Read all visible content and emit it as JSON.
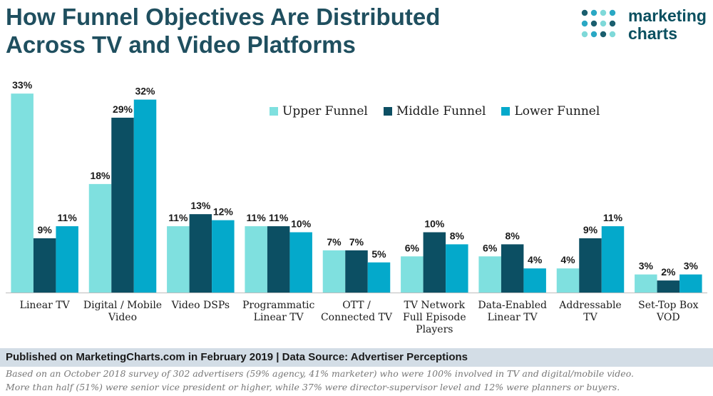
{
  "header": {
    "title_line1": "How Funnel Objectives Are Distributed",
    "title_line2": "Across TV and Video Platforms"
  },
  "logo": {
    "line1": "marketing",
    "line2": "charts",
    "dot_colors": [
      "#1a5e6e",
      "#2aa8c4",
      "#7fd9d9"
    ]
  },
  "chart_data": {
    "type": "bar",
    "categories": [
      [
        "Linear TV"
      ],
      [
        "Digital / Mobile",
        "Video"
      ],
      [
        "Video DSPs"
      ],
      [
        "Programmatic",
        "Linear TV"
      ],
      [
        "OTT /",
        "Connected TV"
      ],
      [
        "TV Network",
        "Full Episode",
        "Players"
      ],
      [
        "Data-Enabled",
        "Linear TV"
      ],
      [
        "Addressable",
        "TV"
      ],
      [
        "Set-Top Box",
        "VOD"
      ]
    ],
    "series": [
      {
        "name": "Upper Funnel",
        "color": "#7fe0df",
        "values": [
          33,
          18,
          11,
          11,
          7,
          6,
          6,
          4,
          3
        ]
      },
      {
        "name": "Middle Funnel",
        "color": "#0c4f63",
        "values": [
          9,
          29,
          13,
          11,
          7,
          10,
          8,
          9,
          2
        ]
      },
      {
        "name": "Lower Funnel",
        "color": "#04a9cb",
        "values": [
          11,
          32,
          12,
          10,
          5,
          8,
          4,
          11,
          3
        ]
      }
    ],
    "value_suffix": "%",
    "ylim": [
      0,
      35
    ],
    "grid": false,
    "legend_position": "top-right"
  },
  "footer": {
    "published": "Published on MarketingCharts.com in February 2019 | Data Source: Advertiser Perceptions",
    "note_line1": "Based on an October 2018 survey of 302 advertisers (59% agency, 41% marketer) who were 100% involved in TV and digital/mobile video.",
    "note_line2": "More than half (51%) were senior vice president or higher, while 37% were director-supervisor level and 12% were planners or buyers."
  }
}
